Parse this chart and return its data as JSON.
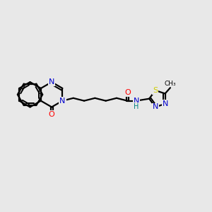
{
  "background_color": "#e8e8e8",
  "atom_colors": {
    "C": "#000000",
    "N": "#0000cc",
    "O": "#ff0000",
    "S": "#cccc00",
    "H": "#008080"
  },
  "bond_color": "#000000",
  "figsize": [
    3.0,
    3.0
  ],
  "dpi": 100,
  "xlim": [
    0,
    10
  ],
  "ylim": [
    0,
    10
  ]
}
